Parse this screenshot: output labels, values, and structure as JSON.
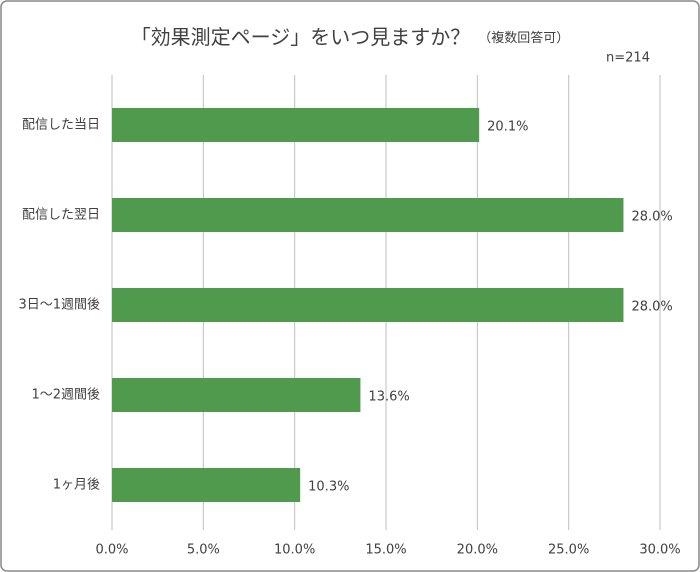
{
  "chart_data": {
    "type": "hbar",
    "title": "「効果測定ページ」をいつ見ますか？",
    "subtitle": "（複数回答可）",
    "annotation": "n=214",
    "categories": [
      "配信した当日",
      "配信した翌日",
      "3日～1週間後",
      "1～2週間後",
      "1ヶ月後"
    ],
    "values": [
      20.1,
      28.0,
      28.0,
      13.6,
      10.3
    ],
    "value_labels": [
      "20.1%",
      "28.0%",
      "28.0%",
      "13.6%",
      "10.3%"
    ],
    "color": "#4f9a4c",
    "xlim": [
      0,
      30
    ],
    "xticks": [
      {
        "value": 0,
        "label": "0.0%"
      },
      {
        "value": 5,
        "label": "5.0%"
      },
      {
        "value": 10,
        "label": "10.0%"
      },
      {
        "value": 15,
        "label": "15.0%"
      },
      {
        "value": 20,
        "label": "20.0%"
      },
      {
        "value": 25,
        "label": "25.0%"
      },
      {
        "value": 30,
        "label": "30.0%"
      }
    ],
    "grid": true
  }
}
